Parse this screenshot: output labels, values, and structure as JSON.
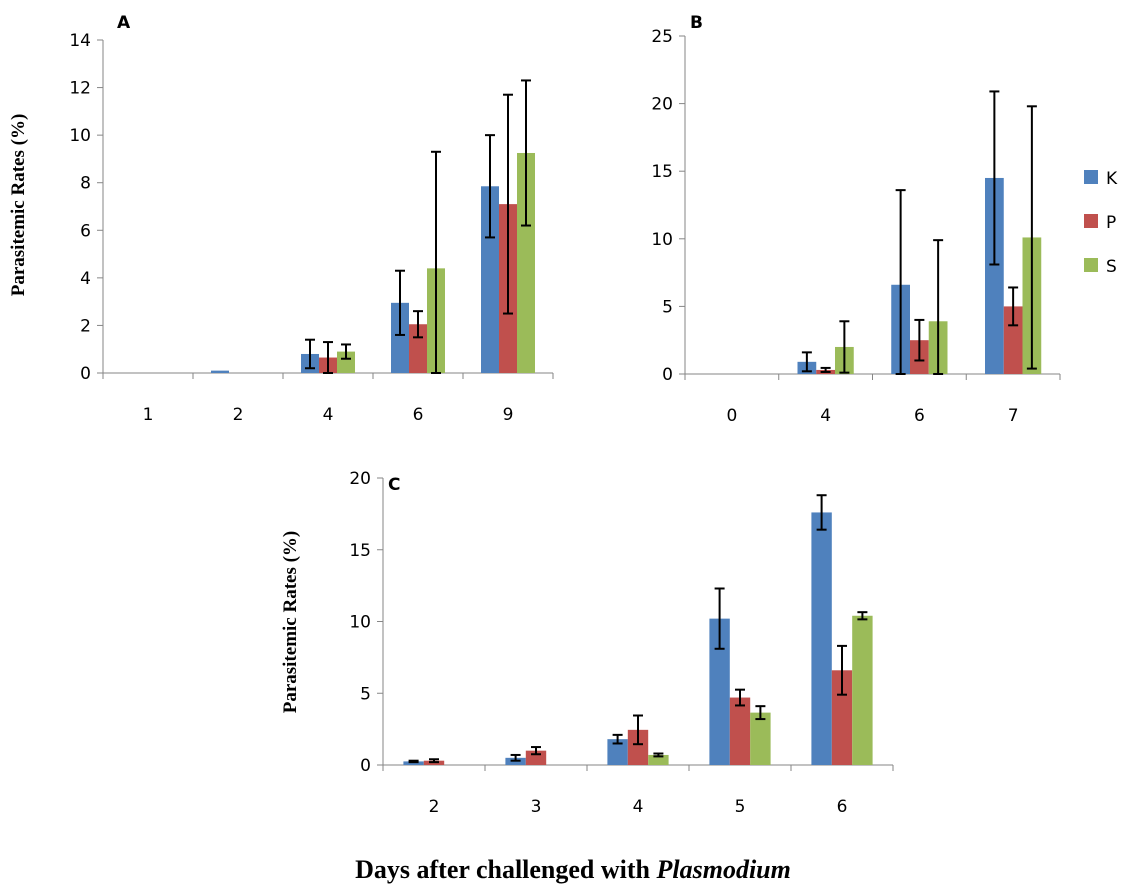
{
  "figure": {
    "footer_main": "Days after challenged with ",
    "footer_italic": "Plasmodium"
  },
  "legend": [
    {
      "label": "K",
      "color": "#4f81bd"
    },
    {
      "label": "P",
      "color": "#c0504d"
    },
    {
      "label": "S",
      "color": "#9bbb59"
    }
  ],
  "chart_data": [
    {
      "type": "bar",
      "panel_label": "A",
      "ylabel": "Parasitemic Rates (%)",
      "ylim": [
        0,
        14
      ],
      "yticks": [
        0,
        2,
        4,
        6,
        8,
        10,
        12,
        14
      ],
      "categories": [
        "1",
        "2",
        "4",
        "6",
        "9"
      ],
      "series": [
        {
          "name": "K",
          "values": [
            0,
            0.1,
            0.8,
            2.95,
            7.85
          ],
          "errors": [
            0,
            0,
            0.6,
            1.35,
            2.15
          ]
        },
        {
          "name": "P",
          "values": [
            0,
            0,
            0.65,
            2.05,
            7.1
          ],
          "errors": [
            0,
            0,
            0.65,
            0.55,
            4.6
          ]
        },
        {
          "name": "S",
          "values": [
            0,
            0,
            0.9,
            4.4,
            9.25
          ],
          "errors": [
            0,
            0,
            0.3,
            4.9,
            3.05
          ]
        }
      ]
    },
    {
      "type": "bar",
      "panel_label": "B",
      "ylabel": "",
      "ylim": [
        0,
        25
      ],
      "yticks": [
        0,
        5,
        10,
        15,
        20,
        25
      ],
      "categories": [
        "0",
        "4",
        "6",
        "7"
      ],
      "series": [
        {
          "name": "K",
          "values": [
            0,
            0.9,
            6.6,
            14.5
          ],
          "errors": [
            0,
            0.7,
            7.0,
            6.4
          ]
        },
        {
          "name": "P",
          "values": [
            0,
            0.3,
            2.5,
            5.0
          ],
          "errors": [
            0,
            0.15,
            1.5,
            1.4
          ]
        },
        {
          "name": "S",
          "values": [
            0,
            2.0,
            3.9,
            10.1
          ],
          "errors": [
            0,
            1.9,
            6.0,
            9.7
          ]
        }
      ]
    },
    {
      "type": "bar",
      "panel_label": "C",
      "ylabel": "Parasitemic Rates (%)",
      "ylim": [
        0,
        20
      ],
      "yticks": [
        0,
        5,
        10,
        15,
        20
      ],
      "categories": [
        "2",
        "3",
        "4",
        "5",
        "6"
      ],
      "series": [
        {
          "name": "K",
          "values": [
            0.25,
            0.5,
            1.8,
            10.2,
            17.6
          ],
          "errors": [
            0.05,
            0.2,
            0.3,
            2.1,
            1.2
          ]
        },
        {
          "name": "P",
          "values": [
            0.3,
            1.0,
            2.45,
            4.7,
            6.6
          ],
          "errors": [
            0.1,
            0.25,
            1.0,
            0.55,
            1.7
          ]
        },
        {
          "name": "S",
          "values": [
            0,
            0,
            0.7,
            3.65,
            10.4
          ],
          "errors": [
            0,
            0,
            0.1,
            0.45,
            0.25
          ]
        }
      ]
    }
  ]
}
